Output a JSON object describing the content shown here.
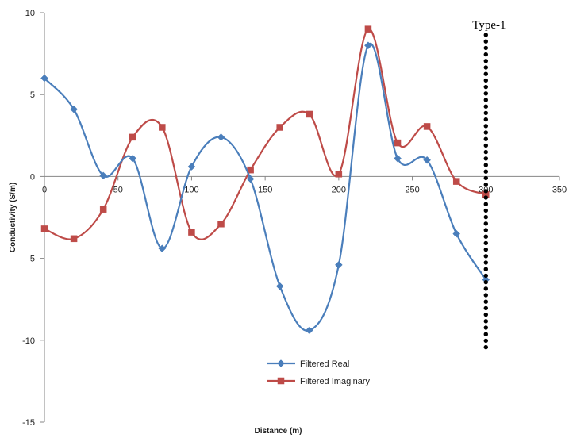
{
  "chart_data": {
    "type": "line",
    "title": "",
    "xlabel": "Distance (m)",
    "ylabel": "Conductivity (S/m)",
    "xlim": [
      0,
      350
    ],
    "ylim": [
      -15,
      10
    ],
    "xticks": [
      0,
      50,
      100,
      150,
      200,
      250,
      300,
      350
    ],
    "yticks": [
      10,
      5,
      0,
      -5,
      -10,
      -15
    ],
    "x": [
      0,
      20,
      40,
      60,
      80,
      100,
      120,
      140,
      160,
      180,
      200,
      220,
      240,
      260,
      280,
      300
    ],
    "series": [
      {
        "name": "Filtered Real",
        "color": "#4a7ebb",
        "marker": "diamond",
        "values": [
          6.0,
          4.1,
          0.05,
          1.1,
          -4.4,
          0.6,
          2.4,
          -0.15,
          -6.7,
          -9.4,
          -5.4,
          8.0,
          1.1,
          1.0,
          -3.5,
          -6.3
        ]
      },
      {
        "name": "Filtered Imaginary",
        "color": "#be4b48",
        "marker": "square",
        "values": [
          -3.2,
          -3.8,
          -2.0,
          2.4,
          3.0,
          -3.4,
          -2.9,
          0.4,
          3.0,
          3.8,
          0.15,
          9.0,
          2.05,
          3.05,
          -0.3,
          -1.1
        ]
      }
    ],
    "legend_position": "bottom-center",
    "grid": false,
    "annotation": {
      "text": "Type-1",
      "x": 300,
      "line_style": "dotted"
    }
  }
}
